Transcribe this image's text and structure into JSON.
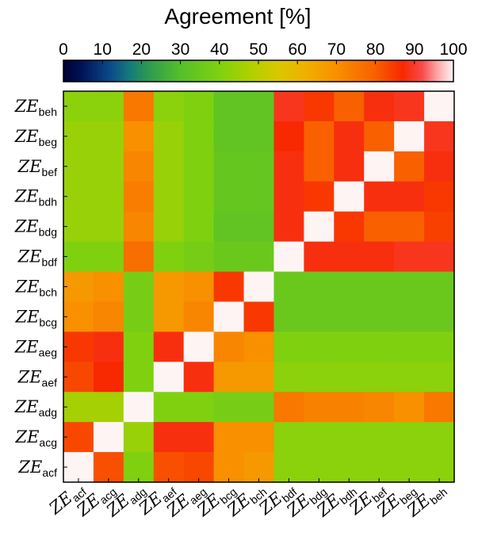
{
  "chart_data": {
    "type": "heatmap",
    "colorbar": {
      "title": "Agreement [%]",
      "ticks": [
        "0",
        "10",
        "20",
        "30",
        "40",
        "50",
        "60",
        "70",
        "80",
        "90",
        "100"
      ],
      "range": [
        0,
        100
      ],
      "location": "top",
      "stops": [
        [
          0,
          "#000033"
        ],
        [
          0.05,
          "#00155a"
        ],
        [
          0.12,
          "#0a4a8a"
        ],
        [
          0.17,
          "#157a7a"
        ],
        [
          0.22,
          "#2f9a50"
        ],
        [
          0.3,
          "#55bf2a"
        ],
        [
          0.4,
          "#7fd110"
        ],
        [
          0.48,
          "#b0d000"
        ],
        [
          0.55,
          "#d8c800"
        ],
        [
          0.62,
          "#f0b000"
        ],
        [
          0.7,
          "#f89000"
        ],
        [
          0.8,
          "#f86000"
        ],
        [
          0.87,
          "#f82800"
        ],
        [
          0.92,
          "#f84a4a"
        ],
        [
          0.96,
          "#fca8a8"
        ],
        [
          1.0,
          "#fff4f4"
        ]
      ]
    },
    "x_labels": [
      {
        "main": "ZE",
        "sub": "acf"
      },
      {
        "main": "ZE",
        "sub": "acg"
      },
      {
        "main": "ZE",
        "sub": "adg"
      },
      {
        "main": "ZE",
        "sub": "aef"
      },
      {
        "main": "ZE",
        "sub": "aeg"
      },
      {
        "main": "ZE",
        "sub": "bcg"
      },
      {
        "main": "ZE",
        "sub": "bch"
      },
      {
        "main": "ZE",
        "sub": "bdf"
      },
      {
        "main": "ZE",
        "sub": "bdg"
      },
      {
        "main": "ZE",
        "sub": "bdh"
      },
      {
        "main": "ZE",
        "sub": "bef"
      },
      {
        "main": "ZE",
        "sub": "beg"
      },
      {
        "main": "ZE",
        "sub": "beh"
      }
    ],
    "y_labels_top_to_bottom": [
      {
        "main": "ZE",
        "sub": "beh"
      },
      {
        "main": "ZE",
        "sub": "beg"
      },
      {
        "main": "ZE",
        "sub": "bef"
      },
      {
        "main": "ZE",
        "sub": "bdh"
      },
      {
        "main": "ZE",
        "sub": "bdg"
      },
      {
        "main": "ZE",
        "sub": "bdf"
      },
      {
        "main": "ZE",
        "sub": "bch"
      },
      {
        "main": "ZE",
        "sub": "bcg"
      },
      {
        "main": "ZE",
        "sub": "aeg"
      },
      {
        "main": "ZE",
        "sub": "aef"
      },
      {
        "main": "ZE",
        "sub": "adg"
      },
      {
        "main": "ZE",
        "sub": "acg"
      },
      {
        "main": "ZE",
        "sub": "acf"
      }
    ],
    "values_rows_top_to_bottom": [
      [
        42,
        42,
        75,
        42,
        40,
        33,
        33,
        89,
        85,
        80,
        88,
        89,
        100
      ],
      [
        44,
        44,
        70,
        44,
        40,
        33,
        33,
        87,
        80,
        88,
        80,
        100,
        89
      ],
      [
        44,
        44,
        72,
        44,
        40,
        34,
        34,
        88,
        80,
        88,
        100,
        80,
        88
      ],
      [
        44,
        44,
        74,
        44,
        40,
        34,
        34,
        88,
        85,
        100,
        88,
        88,
        85
      ],
      [
        44,
        44,
        72,
        44,
        40,
        33,
        33,
        88,
        100,
        85,
        80,
        80,
        84
      ],
      [
        40,
        40,
        77,
        40,
        38,
        35,
        35,
        100,
        88,
        88,
        88,
        89,
        89
      ],
      [
        68,
        70,
        38,
        68,
        70,
        85,
        100,
        35,
        35,
        35,
        35,
        35,
        35
      ],
      [
        70,
        72,
        38,
        68,
        72,
        100,
        85,
        35,
        35,
        35,
        35,
        35,
        35
      ],
      [
        85,
        88,
        40,
        88,
        100,
        72,
        70,
        40,
        40,
        40,
        40,
        40,
        40
      ],
      [
        83,
        87,
        40,
        100,
        88,
        68,
        68,
        42,
        42,
        42,
        42,
        42,
        42
      ],
      [
        46,
        46,
        100,
        40,
        40,
        38,
        38,
        75,
        73,
        73,
        72,
        70,
        75
      ],
      [
        83,
        100,
        44,
        88,
        88,
        70,
        70,
        42,
        42,
        42,
        42,
        42,
        42
      ],
      [
        100,
        82,
        40,
        82,
        83,
        70,
        68,
        42,
        42,
        42,
        42,
        42,
        42
      ]
    ]
  }
}
